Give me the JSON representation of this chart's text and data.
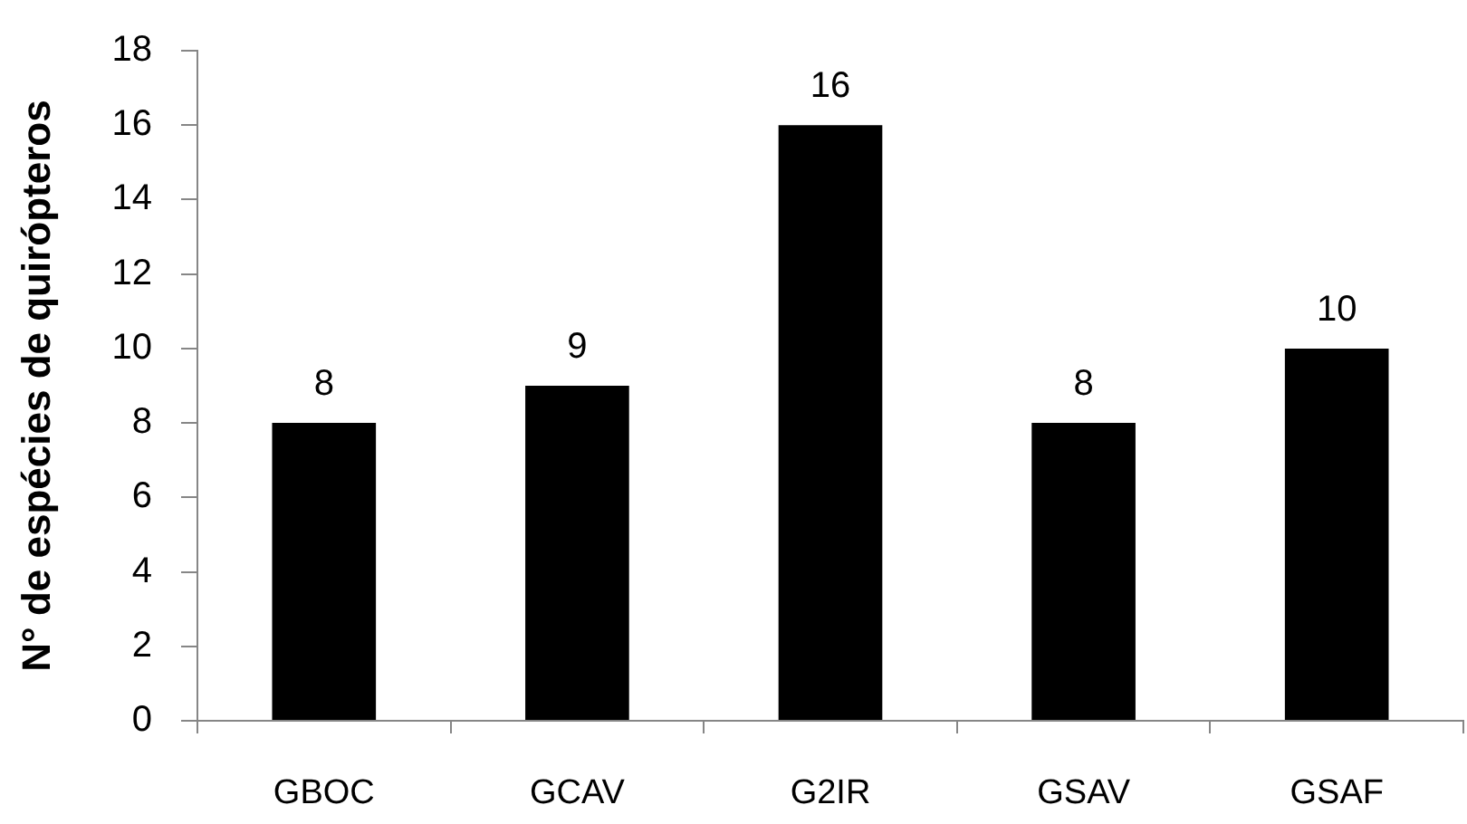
{
  "chart_data": {
    "type": "bar",
    "ylabel": "N° de espécies de quirópteros",
    "categories": [
      "GBOC",
      "GCAV",
      "G2IR",
      "GSAV",
      "GSAF"
    ],
    "values": [
      8,
      9,
      16,
      8,
      10
    ],
    "color": "#000000",
    "ylim": [
      0,
      18
    ],
    "yticks": [
      0,
      2,
      4,
      6,
      8,
      10,
      12,
      14,
      16,
      18
    ],
    "grid": false,
    "legend": false,
    "data_labels": true
  }
}
